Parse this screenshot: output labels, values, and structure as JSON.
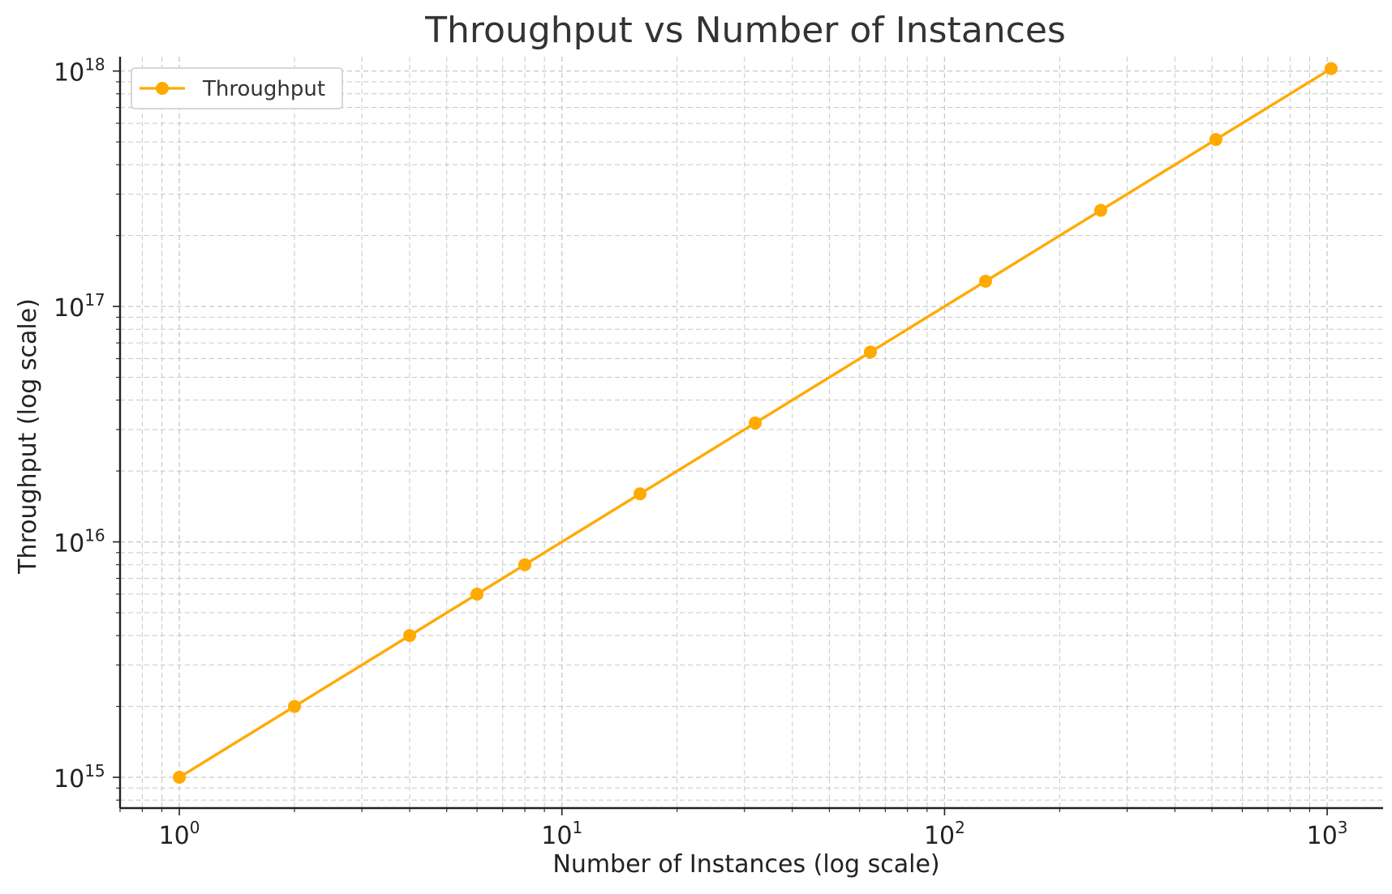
{
  "chart_data": {
    "type": "line",
    "title": "Throughput vs Number of Instances",
    "xlabel": "Number of Instances (log scale)",
    "ylabel": "Throughput (log scale)",
    "xscale": "log",
    "yscale": "log",
    "xlim": [
      0.7,
      1400
    ],
    "ylim": [
      740000000000000.0,
      1.15e+18
    ],
    "grid": true,
    "legend_position": "top-left",
    "x_ticks": [
      {
        "value": 1,
        "base": "10",
        "exp": "0"
      },
      {
        "value": 10,
        "base": "10",
        "exp": "1"
      },
      {
        "value": 100,
        "base": "10",
        "exp": "2"
      },
      {
        "value": 1000,
        "base": "10",
        "exp": "3"
      }
    ],
    "y_ticks": [
      {
        "value": 1000000000000000.0,
        "base": "10",
        "exp": "15"
      },
      {
        "value": 1e+16,
        "base": "10",
        "exp": "16"
      },
      {
        "value": 1e+17,
        "base": "10",
        "exp": "17"
      },
      {
        "value": 1e+18,
        "base": "10",
        "exp": "18"
      }
    ],
    "series": [
      {
        "name": "Throughput",
        "color": "#FFAA00",
        "marker": "circle",
        "x": [
          1,
          2,
          4,
          6,
          8,
          16,
          32,
          64,
          128,
          256,
          512,
          1024
        ],
        "y": [
          1000000000000000.0,
          2000000000000000.0,
          4000000000000000.0,
          6000000000000000.0,
          8000000000000000.0,
          1.6e+16,
          3.2e+16,
          6.4e+16,
          1.28e+17,
          2.56e+17,
          5.12e+17,
          1.024e+18
        ]
      }
    ]
  }
}
